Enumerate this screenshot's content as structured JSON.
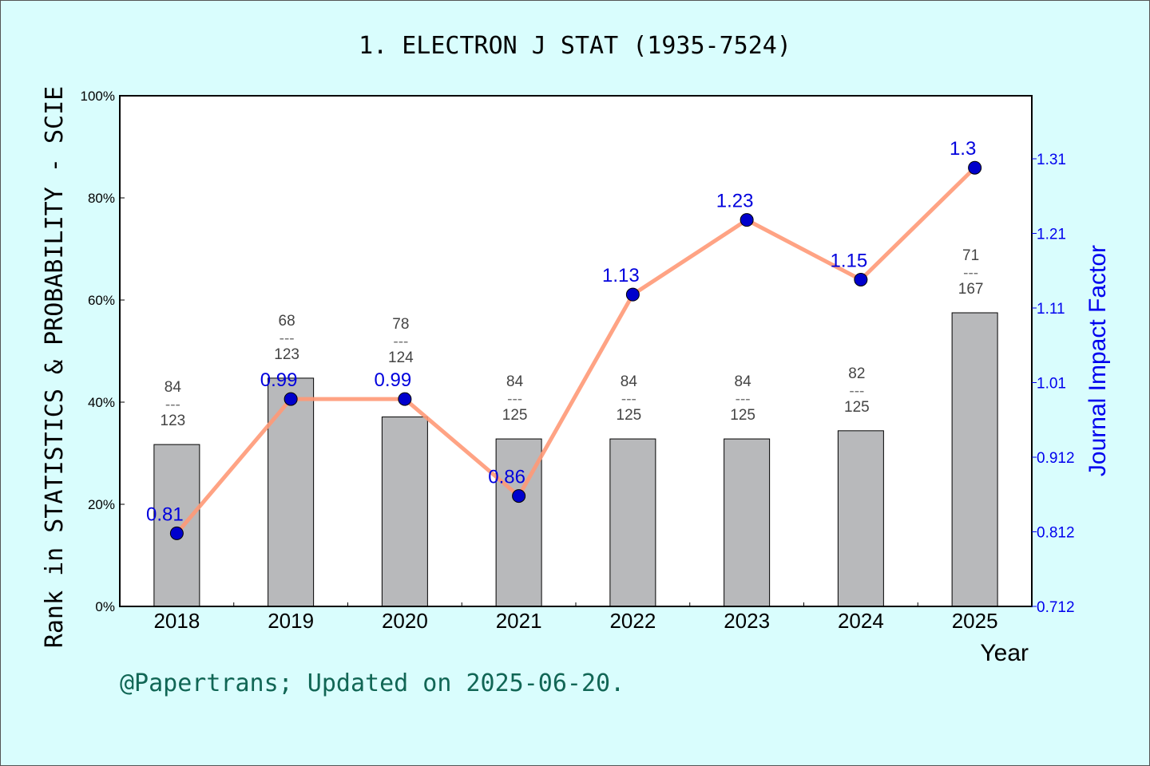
{
  "chart_data": {
    "type": "bar+line",
    "title": "1. ELECTRON J STAT (1935-7524)",
    "xlabel": "Year",
    "ylabel_left": "Rank in STATISTICS & PROBABILITY - SCIE",
    "ylabel_right": "Journal Impact Factor",
    "categories": [
      "2018",
      "2019",
      "2020",
      "2021",
      "2022",
      "2023",
      "2024",
      "2025"
    ],
    "left_axis": {
      "ylim": [
        0,
        100
      ],
      "ticks": [
        "0%",
        "20%",
        "40%",
        "60%",
        "80%",
        "100%"
      ]
    },
    "right_axis": {
      "ylim": [
        0.712,
        1.3965
      ],
      "ticks": [
        "0.712",
        "0.812",
        "0.912",
        "1.01",
        "1.11",
        "1.21",
        "1.31"
      ],
      "tick_values": [
        0.712,
        0.812,
        0.912,
        1.012,
        1.112,
        1.212,
        1.312
      ]
    },
    "bars": {
      "rank": [
        84,
        68,
        78,
        84,
        84,
        84,
        82,
        71
      ],
      "total": [
        123,
        123,
        124,
        125,
        125,
        125,
        125,
        167
      ],
      "percentile": [
        31.7,
        44.7,
        37.1,
        32.8,
        32.8,
        32.8,
        34.4,
        57.5
      ],
      "separator": "---",
      "color": "#b8b9bb"
    },
    "impact_factor": {
      "values": [
        0.81,
        0.99,
        0.99,
        0.86,
        1.13,
        1.23,
        1.15,
        1.3
      ],
      "labels": [
        "0.81",
        "0.99",
        "0.99",
        "0.86",
        "1.13",
        "1.23",
        "1.15",
        "1.3"
      ],
      "line_color": "#ff9977",
      "marker_color": "#0000cc"
    },
    "footer": "@Papertrans; Updated on 2025-06-20."
  }
}
